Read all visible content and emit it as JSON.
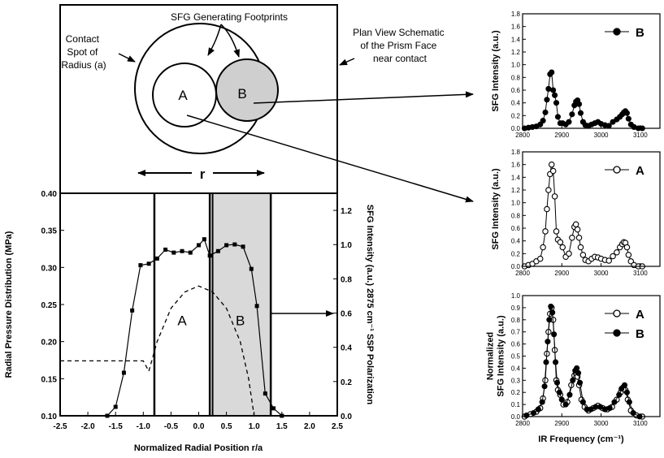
{
  "schematic": {
    "footprints_label": "SFG Generating Footprints",
    "contact_spot_label": [
      "Contact",
      "Spot of",
      "Radius (a)"
    ],
    "plan_view_label": [
      "Plan View Schematic",
      "of the Prism Face",
      "near contact"
    ],
    "spot_a": "A",
    "spot_b": "B",
    "radius_label": "r"
  },
  "chart_data": [
    {
      "id": "pressure",
      "type": "line",
      "xlabel": "Normalized Radial Position r/a",
      "ylabel": "Radial Pressure Distribution  (MPa)",
      "y2label": "SFG Intensity (a.u.) 2875 cm⁻¹ SSP Polarization",
      "xlim": [
        -2.5,
        2.5
      ],
      "ylim": [
        0.1,
        0.4
      ],
      "y2lim": [
        0.0,
        1.3
      ],
      "xticks": [
        -2.5,
        -2.0,
        -1.5,
        -1.0,
        -0.5,
        0.0,
        0.5,
        1.0,
        1.5,
        2.0,
        2.5
      ],
      "xtick_labels": [
        "-2.5",
        "-2.0",
        "-1.5",
        "-1.0",
        "-0.5",
        "0.0",
        "0.5",
        "1.0",
        "1.5",
        "2.0",
        "2.5"
      ],
      "yticks": [
        0.1,
        0.15,
        0.2,
        0.25,
        0.3,
        0.35,
        0.4
      ],
      "ytick_labels": [
        "0.10",
        "0.15",
        "0.20",
        "0.25",
        "0.30",
        "0.35",
        "0.40"
      ],
      "y2ticks": [
        0.0,
        0.2,
        0.4,
        0.6,
        0.8,
        1.0,
        1.2
      ],
      "y2tick_labels": [
        "0.0",
        "0.2",
        "0.4",
        "0.6",
        "0.8",
        "1.0",
        "1.2"
      ],
      "series": [
        {
          "x": [
            -1.65,
            -1.5,
            -1.35,
            -1.2,
            -1.05,
            -0.9,
            -0.75,
            -0.6,
            -0.45,
            -0.3,
            -0.15,
            0.0,
            0.1,
            0.2,
            0.35,
            0.5,
            0.65,
            0.8,
            0.95,
            1.05,
            1.2,
            1.35,
            1.5
          ],
          "y": [
            0.1,
            0.112,
            0.158,
            0.242,
            0.303,
            0.305,
            0.312,
            0.324,
            0.32,
            0.322,
            0.32,
            0.33,
            0.338,
            0.316,
            0.322,
            0.33,
            0.331,
            0.328,
            0.298,
            0.248,
            0.13,
            0.11,
            0.1
          ]
        }
      ],
      "dashed_curve": {
        "x": [
          -2.5,
          -1.0,
          -0.9,
          -0.75,
          -0.5,
          -0.25,
          0.0,
          0.25,
          0.5,
          0.75,
          0.9,
          1.0
        ],
        "y": [
          0.174,
          0.174,
          0.16,
          0.2,
          0.245,
          0.267,
          0.275,
          0.267,
          0.245,
          0.2,
          0.15,
          0.1
        ]
      },
      "region_a": {
        "label": "A",
        "x": [
          -0.8,
          0.2
        ]
      },
      "region_b": {
        "label": "B",
        "x": [
          0.25,
          1.3
        ],
        "fill": "#d9d9d9"
      }
    },
    {
      "id": "spectrum-b",
      "type": "line",
      "ylabel": "SFG Intensity (a.u.)",
      "xlim": [
        2800,
        3150
      ],
      "ylim": [
        0.0,
        1.8
      ],
      "xticks": [
        2800,
        2900,
        3000,
        3100
      ],
      "xtick_labels": [
        "2800",
        "2900",
        "3000",
        "3100"
      ],
      "yticks": [
        0.0,
        0.2,
        0.4,
        0.6,
        0.8,
        1.0,
        1.2,
        1.4,
        1.6,
        1.8
      ],
      "ytick_labels": [
        "0.0",
        "0.2",
        "0.4",
        "0.6",
        "0.8",
        "1.0",
        "1.2",
        "1.4",
        "1.6",
        "1.8"
      ],
      "series": [
        {
          "name": "B",
          "marker": "filled",
          "x": [
            2805,
            2815,
            2825,
            2835,
            2845,
            2852,
            2858,
            2862,
            2866,
            2870,
            2874,
            2878,
            2882,
            2886,
            2890,
            2896,
            2902,
            2910,
            2918,
            2926,
            2932,
            2936,
            2940,
            2944,
            2948,
            2954,
            2960,
            2968,
            2976,
            2984,
            2992,
            3000,
            3010,
            3020,
            3030,
            3040,
            3048,
            3054,
            3058,
            3062,
            3066,
            3070,
            3076,
            3084,
            3095,
            3105
          ],
          "y": [
            0.0,
            0.01,
            0.02,
            0.03,
            0.06,
            0.12,
            0.25,
            0.45,
            0.62,
            0.85,
            0.88,
            0.6,
            0.52,
            0.4,
            0.18,
            0.08,
            0.08,
            0.06,
            0.1,
            0.22,
            0.36,
            0.42,
            0.44,
            0.38,
            0.24,
            0.1,
            0.05,
            0.04,
            0.06,
            0.08,
            0.1,
            0.07,
            0.05,
            0.04,
            0.1,
            0.14,
            0.18,
            0.22,
            0.25,
            0.27,
            0.24,
            0.15,
            0.06,
            0.02,
            0.0,
            0.0
          ]
        }
      ]
    },
    {
      "id": "spectrum-a",
      "type": "line",
      "ylabel": "SFG Intensity (a.u.)",
      "xlim": [
        2800,
        3150
      ],
      "ylim": [
        0.0,
        1.8
      ],
      "xticks": [
        2800,
        2900,
        3000,
        3100
      ],
      "xtick_labels": [
        "2800",
        "2900",
        "3000",
        "3100"
      ],
      "yticks": [
        0.0,
        0.2,
        0.4,
        0.6,
        0.8,
        1.0,
        1.2,
        1.4,
        1.6,
        1.8
      ],
      "ytick_labels": [
        "0.0",
        "0.2",
        "0.4",
        "0.6",
        "0.8",
        "1.0",
        "1.2",
        "1.4",
        "1.6",
        "1.8"
      ],
      "series": [
        {
          "name": "A",
          "marker": "open",
          "x": [
            2805,
            2815,
            2825,
            2835,
            2845,
            2852,
            2858,
            2862,
            2866,
            2870,
            2874,
            2878,
            2882,
            2886,
            2890,
            2896,
            2902,
            2910,
            2918,
            2926,
            2932,
            2936,
            2940,
            2944,
            2948,
            2954,
            2960,
            2968,
            2976,
            2984,
            2992,
            3000,
            3010,
            3020,
            3030,
            3040,
            3048,
            3054,
            3058,
            3062,
            3066,
            3070,
            3076,
            3084,
            3095,
            3105
          ],
          "y": [
            0.0,
            0.02,
            0.04,
            0.08,
            0.12,
            0.3,
            0.55,
            0.9,
            1.2,
            1.45,
            1.6,
            1.5,
            1.1,
            0.55,
            0.42,
            0.38,
            0.3,
            0.15,
            0.2,
            0.45,
            0.62,
            0.66,
            0.58,
            0.45,
            0.3,
            0.18,
            0.1,
            0.08,
            0.12,
            0.15,
            0.14,
            0.12,
            0.1,
            0.09,
            0.16,
            0.22,
            0.3,
            0.35,
            0.38,
            0.37,
            0.3,
            0.18,
            0.08,
            0.02,
            0.0,
            0.0
          ]
        }
      ]
    },
    {
      "id": "spectrum-normalized",
      "type": "line",
      "xlabel": "IR Frequency (cm⁻¹)",
      "ylabel": "Normalized SFG Intensity (a.u.)",
      "ylabel_lines": [
        "Normalized",
        "SFG Intensity (a.u.)"
      ],
      "xlim": [
        2800,
        3150
      ],
      "ylim": [
        0.0,
        1.0
      ],
      "xticks": [
        2800,
        2900,
        3000,
        3100
      ],
      "xtick_labels": [
        "2800",
        "2900",
        "3000",
        "3100"
      ],
      "yticks": [
        0.0,
        0.1,
        0.2,
        0.3,
        0.4,
        0.5,
        0.6,
        0.7,
        0.8,
        0.9,
        1.0
      ],
      "ytick_labels": [
        "0.0",
        "0.1",
        "0.2",
        "0.3",
        "0.4",
        "0.5",
        "0.6",
        "0.7",
        "0.8",
        "0.9",
        "1.0"
      ],
      "series": [
        {
          "name": "A",
          "marker": "open",
          "x": [
            2805,
            2820,
            2835,
            2845,
            2852,
            2858,
            2862,
            2866,
            2870,
            2874,
            2878,
            2882,
            2886,
            2890,
            2896,
            2904,
            2914,
            2924,
            2932,
            2936,
            2940,
            2944,
            2950,
            2958,
            2968,
            2980,
            2992,
            3004,
            3016,
            3028,
            3040,
            3050,
            3056,
            3062,
            3068,
            3076,
            3090,
            3105
          ],
          "y": [
            0.0,
            0.02,
            0.04,
            0.07,
            0.15,
            0.3,
            0.52,
            0.7,
            0.85,
            0.9,
            0.8,
            0.55,
            0.3,
            0.22,
            0.18,
            0.1,
            0.12,
            0.26,
            0.34,
            0.36,
            0.33,
            0.26,
            0.14,
            0.08,
            0.05,
            0.07,
            0.09,
            0.07,
            0.06,
            0.08,
            0.14,
            0.2,
            0.24,
            0.22,
            0.14,
            0.05,
            0.01,
            0.0
          ]
        },
        {
          "name": "B",
          "marker": "filled",
          "x": [
            2810,
            2828,
            2840,
            2850,
            2856,
            2860,
            2864,
            2868,
            2872,
            2876,
            2880,
            2884,
            2888,
            2894,
            2900,
            2910,
            2920,
            2928,
            2934,
            2938,
            2942,
            2946,
            2954,
            2964,
            2974,
            2986,
            2998,
            3010,
            3022,
            3034,
            3046,
            3052,
            3060,
            3066,
            3072,
            3082,
            3098
          ],
          "y": [
            0.01,
            0.03,
            0.06,
            0.12,
            0.25,
            0.45,
            0.62,
            0.8,
            0.91,
            0.86,
            0.68,
            0.45,
            0.28,
            0.2,
            0.14,
            0.1,
            0.18,
            0.3,
            0.38,
            0.4,
            0.36,
            0.28,
            0.12,
            0.06,
            0.06,
            0.08,
            0.08,
            0.06,
            0.07,
            0.12,
            0.18,
            0.23,
            0.26,
            0.2,
            0.12,
            0.03,
            0.0
          ]
        }
      ]
    }
  ]
}
